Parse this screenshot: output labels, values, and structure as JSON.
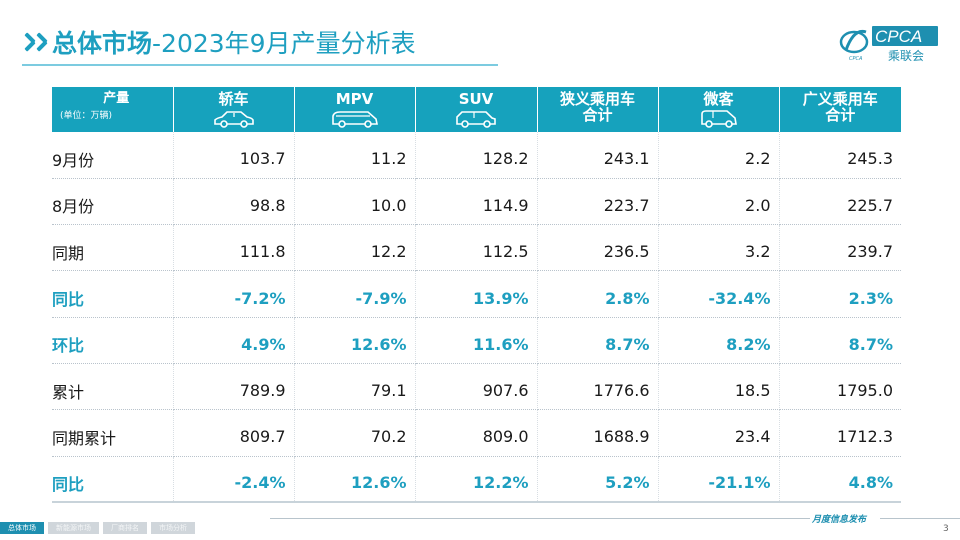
{
  "header": {
    "title_main": "总体市场",
    "title_sub": "-2023年9月产量分析表"
  },
  "logo": {
    "text": "CPCA",
    "subtext": "乘联会",
    "emblem_text": "CPCA"
  },
  "table": {
    "corner": {
      "label": "产量",
      "unit": "(单位：万辆)"
    },
    "columns": [
      {
        "label": "轿车",
        "icon": "sedan-icon"
      },
      {
        "label": "MPV",
        "icon": "mpv-icon"
      },
      {
        "label": "SUV",
        "icon": "suv-icon"
      },
      {
        "label": "狭义乘用车\n合计",
        "icon": ""
      },
      {
        "label": "微客",
        "icon": "minivan-icon"
      },
      {
        "label": "广义乘用车\n合计",
        "icon": ""
      }
    ],
    "rows": [
      {
        "label": "9月份",
        "values": [
          "103.7",
          "11.2",
          "128.2",
          "243.1",
          "2.2",
          "245.3"
        ],
        "type": "value"
      },
      {
        "label": "8月份",
        "values": [
          "98.8",
          "10.0",
          "114.9",
          "223.7",
          "2.0",
          "225.7"
        ],
        "type": "value"
      },
      {
        "label": "同期",
        "values": [
          "111.8",
          "12.2",
          "112.5",
          "236.5",
          "3.2",
          "239.7"
        ],
        "type": "value"
      },
      {
        "label": "同比",
        "values": [
          "-7.2%",
          "-7.9%",
          "13.9%",
          "2.8%",
          "-32.4%",
          "2.3%"
        ],
        "type": "pct"
      },
      {
        "label": "环比",
        "values": [
          "4.9%",
          "12.6%",
          "11.6%",
          "8.7%",
          "8.2%",
          "8.7%"
        ],
        "type": "pct"
      },
      {
        "label": "累计",
        "values": [
          "789.9",
          "79.1",
          "907.6",
          "1776.6",
          "18.5",
          "1795.0"
        ],
        "type": "value"
      },
      {
        "label": "同期累计",
        "values": [
          "809.7",
          "70.2",
          "809.0",
          "1688.9",
          "23.4",
          "1712.3"
        ],
        "type": "value"
      },
      {
        "label": "同比",
        "values": [
          "-2.4%",
          "12.6%",
          "12.2%",
          "5.2%",
          "-21.1%",
          "4.8%"
        ],
        "type": "pct"
      }
    ]
  },
  "footer": {
    "tabs": [
      {
        "label": "总体市场",
        "active": true
      },
      {
        "label": "新能源市场",
        "active": false
      },
      {
        "label": "厂商排名",
        "active": false
      },
      {
        "label": "市场分析",
        "active": false
      }
    ],
    "right_text": "月度信息发布",
    "page": "3"
  },
  "colors": {
    "accent": "#1e9fc0",
    "header_bg": "#16a2bd",
    "footer_active": "#1e8fb0"
  }
}
